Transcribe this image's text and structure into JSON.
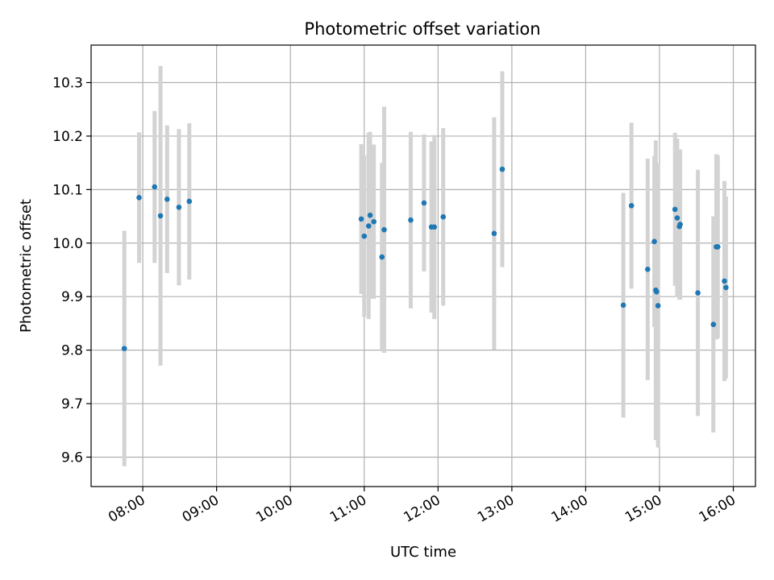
{
  "chart_data": {
    "type": "scatter",
    "title": "Photometric offset variation",
    "xlabel": "UTC time",
    "ylabel": "Photometric offset",
    "x_unit": "hours UTC",
    "xlim": [
      7.3,
      16.3
    ],
    "ylim": [
      9.545,
      10.37
    ],
    "grid": true,
    "x_ticks": [
      {
        "value": 8,
        "label": "08:00"
      },
      {
        "value": 9,
        "label": "09:00"
      },
      {
        "value": 10,
        "label": "10:00"
      },
      {
        "value": 11,
        "label": "11:00"
      },
      {
        "value": 12,
        "label": "12:00"
      },
      {
        "value": 13,
        "label": "13:00"
      },
      {
        "value": 14,
        "label": "14:00"
      },
      {
        "value": 15,
        "label": "15:00"
      },
      {
        "value": 16,
        "label": "16:00"
      }
    ],
    "y_ticks": [
      {
        "value": 9.6,
        "label": "9.6"
      },
      {
        "value": 9.7,
        "label": "9.7"
      },
      {
        "value": 9.8,
        "label": "9.8"
      },
      {
        "value": 9.9,
        "label": "9.9"
      },
      {
        "value": 10.0,
        "label": "10.0"
      },
      {
        "value": 10.1,
        "label": "10.1"
      },
      {
        "value": 10.2,
        "label": "10.2"
      },
      {
        "value": 10.3,
        "label": "10.3"
      }
    ],
    "series": [
      {
        "name": "offset",
        "marker_color": "#1f77b4",
        "errorbar_color": "#d3d3d3",
        "points": [
          {
            "x": 7.75,
            "y": 9.803,
            "err": 0.22
          },
          {
            "x": 7.95,
            "y": 10.085,
            "err": 0.122
          },
          {
            "x": 8.16,
            "y": 10.105,
            "err": 0.142
          },
          {
            "x": 8.24,
            "y": 10.051,
            "err": 0.28
          },
          {
            "x": 8.33,
            "y": 10.082,
            "err": 0.138
          },
          {
            "x": 8.49,
            "y": 10.067,
            "err": 0.146
          },
          {
            "x": 8.63,
            "y": 10.078,
            "err": 0.146
          },
          {
            "x": 10.96,
            "y": 10.045,
            "err": 0.14
          },
          {
            "x": 11.0,
            "y": 10.013,
            "err": 0.151
          },
          {
            "x": 11.06,
            "y": 10.032,
            "err": 0.174
          },
          {
            "x": 11.08,
            "y": 10.052,
            "err": 0.156
          },
          {
            "x": 11.13,
            "y": 10.04,
            "err": 0.144
          },
          {
            "x": 11.24,
            "y": 9.974,
            "err": 0.176
          },
          {
            "x": 11.27,
            "y": 10.025,
            "err": 0.23
          },
          {
            "x": 11.63,
            "y": 10.043,
            "err": 0.165
          },
          {
            "x": 11.81,
            "y": 10.075,
            "err": 0.128
          },
          {
            "x": 11.91,
            "y": 10.03,
            "err": 0.16
          },
          {
            "x": 11.95,
            "y": 10.03,
            "err": 0.172
          },
          {
            "x": 12.07,
            "y": 10.049,
            "err": 0.166
          },
          {
            "x": 12.76,
            "y": 10.018,
            "err": 0.217
          },
          {
            "x": 12.87,
            "y": 10.138,
            "err": 0.183
          },
          {
            "x": 14.51,
            "y": 9.884,
            "err": 0.21
          },
          {
            "x": 14.62,
            "y": 10.07,
            "err": 0.155
          },
          {
            "x": 14.84,
            "y": 9.951,
            "err": 0.207
          },
          {
            "x": 14.93,
            "y": 10.003,
            "err": 0.16
          },
          {
            "x": 14.95,
            "y": 9.912,
            "err": 0.28
          },
          {
            "x": 14.96,
            "y": 9.909,
            "err": 0.24
          },
          {
            "x": 14.98,
            "y": 9.883,
            "err": 0.265
          },
          {
            "x": 15.21,
            "y": 10.063,
            "err": 0.143
          },
          {
            "x": 15.24,
            "y": 10.047,
            "err": 0.148
          },
          {
            "x": 15.27,
            "y": 10.031,
            "err": 0.137
          },
          {
            "x": 15.28,
            "y": 10.035,
            "err": 0.14
          },
          {
            "x": 15.52,
            "y": 9.907,
            "err": 0.23
          },
          {
            "x": 15.73,
            "y": 9.848,
            "err": 0.202
          },
          {
            "x": 15.77,
            "y": 9.993,
            "err": 0.173
          },
          {
            "x": 15.79,
            "y": 9.993,
            "err": 0.171
          },
          {
            "x": 15.88,
            "y": 9.929,
            "err": 0.187
          },
          {
            "x": 15.9,
            "y": 9.917,
            "err": 0.17
          }
        ]
      }
    ]
  }
}
